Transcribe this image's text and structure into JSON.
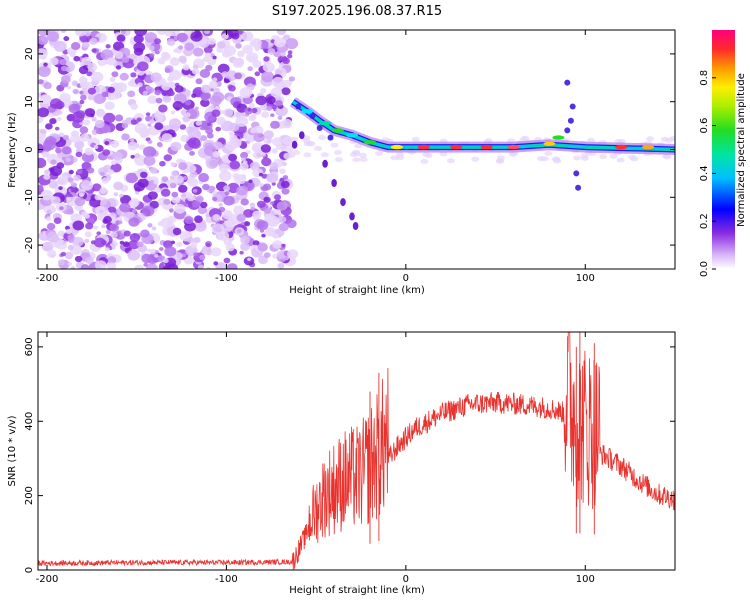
{
  "title": "S197.2025.196.08.37.R15",
  "colors": {
    "snr_line": "#e8322e",
    "noise_dots": "#8a2be2",
    "frame": "#000000"
  },
  "colorbar": {
    "label": "Normalized spectral amplitude",
    "range": [
      0.0,
      1.0
    ],
    "ticks": [
      "0.0",
      "0.2",
      "0.4",
      "0.6",
      "0.8"
    ],
    "tick_values": [
      0.0,
      0.2,
      0.4,
      0.6,
      0.8
    ]
  },
  "chart_data": [
    {
      "type": "heatmap",
      "xlabel": "Height of straight line (km)",
      "ylabel": "Frequency (Hz)",
      "xlim": [
        -205,
        150
      ],
      "ylim": [
        -25,
        25
      ],
      "xticks": [
        "-200",
        "-100",
        "0",
        "100"
      ],
      "xtick_values": [
        -200,
        -100,
        0,
        100
      ],
      "yticks": [
        "20",
        "10",
        "0",
        "-10",
        "-20"
      ],
      "ytick_values": [
        20,
        10,
        0,
        -10,
        -20
      ],
      "noise_region_x": [
        -205,
        -63
      ],
      "signal_track": [
        {
          "x": -63,
          "y": 10
        },
        {
          "x": -55,
          "y": 8
        },
        {
          "x": -48,
          "y": 6
        },
        {
          "x": -40,
          "y": 4
        },
        {
          "x": -30,
          "y": 3
        },
        {
          "x": -20,
          "y": 1.5
        },
        {
          "x": -10,
          "y": 0.5
        },
        {
          "x": 0,
          "y": 0.5
        },
        {
          "x": 20,
          "y": 0.5
        },
        {
          "x": 40,
          "y": 0.5
        },
        {
          "x": 60,
          "y": 0.5
        },
        {
          "x": 80,
          "y": 1
        },
        {
          "x": 100,
          "y": 0.5
        },
        {
          "x": 150,
          "y": 0
        }
      ]
    },
    {
      "type": "line",
      "xlabel": "Height of straight line (km)",
      "ylabel": "SNR (10 * v/v)",
      "xlim": [
        -205,
        150
      ],
      "ylim": [
        0,
        640
      ],
      "xticks": [
        "-200",
        "-100",
        "0",
        "100"
      ],
      "xtick_values": [
        -200,
        -100,
        0,
        100
      ],
      "yticks": [
        "0",
        "200",
        "400",
        "600"
      ],
      "ytick_values": [
        0,
        200,
        400,
        600
      ],
      "series": [
        {
          "values_envelope": [
            {
              "x": -205,
              "y": 18
            },
            {
              "x": -150,
              "y": 20
            },
            {
              "x": -100,
              "y": 20
            },
            {
              "x": -63,
              "y": 22
            },
            {
              "x": -55,
              "y": 100
            },
            {
              "x": -45,
              "y": 170
            },
            {
              "x": -35,
              "y": 200
            },
            {
              "x": -25,
              "y": 210
            },
            {
              "x": -15,
              "y": 260
            },
            {
              "x": -5,
              "y": 330
            },
            {
              "x": 5,
              "y": 380
            },
            {
              "x": 20,
              "y": 420
            },
            {
              "x": 35,
              "y": 445
            },
            {
              "x": 50,
              "y": 450
            },
            {
              "x": 65,
              "y": 445
            },
            {
              "x": 80,
              "y": 435
            },
            {
              "x": 90,
              "y": 420
            },
            {
              "x": 95,
              "y": 330
            },
            {
              "x": 105,
              "y": 320
            },
            {
              "x": 110,
              "y": 310
            },
            {
              "x": 120,
              "y": 280
            },
            {
              "x": 130,
              "y": 240
            },
            {
              "x": 140,
              "y": 205
            },
            {
              "x": 150,
              "y": 190
            }
          ],
          "peaks": [
            {
              "x": -20,
              "y": 480
            },
            {
              "x": -15,
              "y": 530
            },
            {
              "x": 95,
              "y": 600
            },
            {
              "x": 97,
              "y": 640
            },
            {
              "x": 105,
              "y": 610
            }
          ]
        }
      ]
    }
  ]
}
